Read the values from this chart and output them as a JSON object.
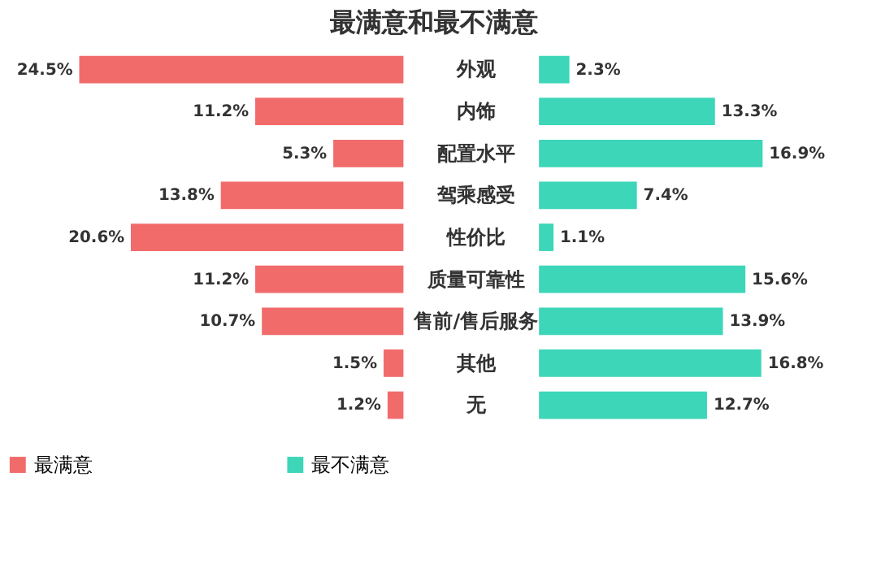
{
  "chart_data": [
    {
      "type": "bar",
      "orientation": "horizontal",
      "title": "最满意和最不满意",
      "legend": "bottom",
      "categories": [
        "外观",
        "内饰",
        "配置水平",
        "驾乘感受",
        "性价比",
        "质量可靠性",
        "售前/售后服务",
        "其他",
        "无"
      ],
      "series": [
        {
          "name": "最满意",
          "color": "#f26b6b",
          "values": [
            24.5,
            11.2,
            5.3,
            13.8,
            20.6,
            11.2,
            10.7,
            1.5,
            1.2
          ],
          "value_labels": [
            "24.5%",
            "11.2%",
            "5.3%",
            "13.8%",
            "20.6%",
            "11.2%",
            "10.7%",
            "1.5%",
            "1.2%"
          ]
        }
      ]
    },
    {
      "type": "bar",
      "orientation": "horizontal",
      "legend": "bottom",
      "categories": [
        null,
        null,
        null,
        null,
        null,
        null,
        null,
        null,
        null
      ],
      "series": [
        {
          "name": "最不满意",
          "color": "#3dd6b8",
          "values": [
            2.3,
            13.3,
            16.9,
            7.4,
            1.1,
            15.6,
            13.9,
            16.8,
            12.7
          ],
          "value_labels": [
            "2.3%",
            "13.3%",
            "16.9%",
            "7.4%",
            "1.1%",
            "15.6%",
            "13.9%",
            "16.8%",
            "12.7%"
          ]
        }
      ]
    }
  ]
}
